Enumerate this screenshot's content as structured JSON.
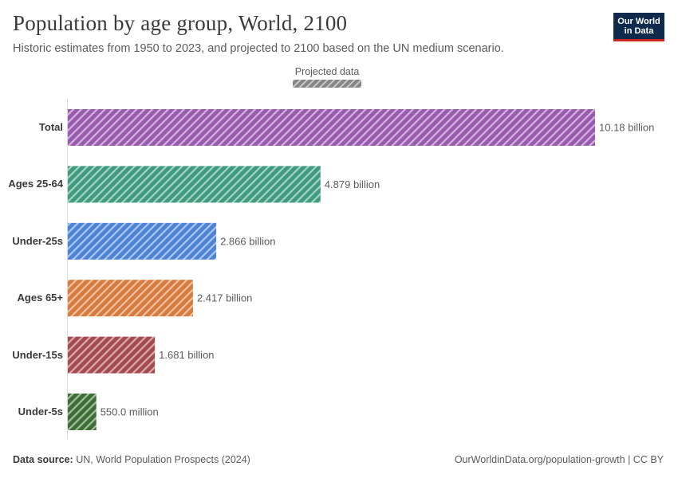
{
  "header": {
    "title": "Population by age group, World, 2100",
    "subtitle": "Historic estimates from 1950 to 2023, and projected to 2100 based on the UN medium scenario.",
    "logo_line1": "Our World",
    "logo_line2": "in Data"
  },
  "legend": {
    "label": "Projected data"
  },
  "footer": {
    "source_label": "Data source:",
    "source_value": "UN, World Population Prospects (2024)",
    "url": "OurWorldinData.org/population-growth | CC BY"
  },
  "colors": {
    "logo_bg": "#0f2a4d",
    "logo_accent": "#ce261e",
    "legend_gray": "#858585"
  },
  "chart_data": {
    "type": "bar",
    "orientation": "horizontal",
    "pattern": "hatched (projected data)",
    "unit": "people",
    "categories": [
      "Total",
      "Ages 25-64",
      "Under-25s",
      "Ages 65+",
      "Under-15s",
      "Under-5s"
    ],
    "values": [
      10180000000,
      4879000000,
      2866000000,
      2417000000,
      1681000000,
      550000000
    ],
    "value_labels": [
      "10.18 billion",
      "4.879 billion",
      "2.866 billion",
      "2.417 billion",
      "1.681 billion",
      "550.0 million"
    ],
    "colors": [
      "#9a5ab0",
      "#3e9b7e",
      "#4b83d6",
      "#d87b3d",
      "#a54a4e",
      "#3c6e34"
    ],
    "xlim": [
      0,
      10180000000
    ],
    "grid": false,
    "legend_position": "top-center"
  }
}
